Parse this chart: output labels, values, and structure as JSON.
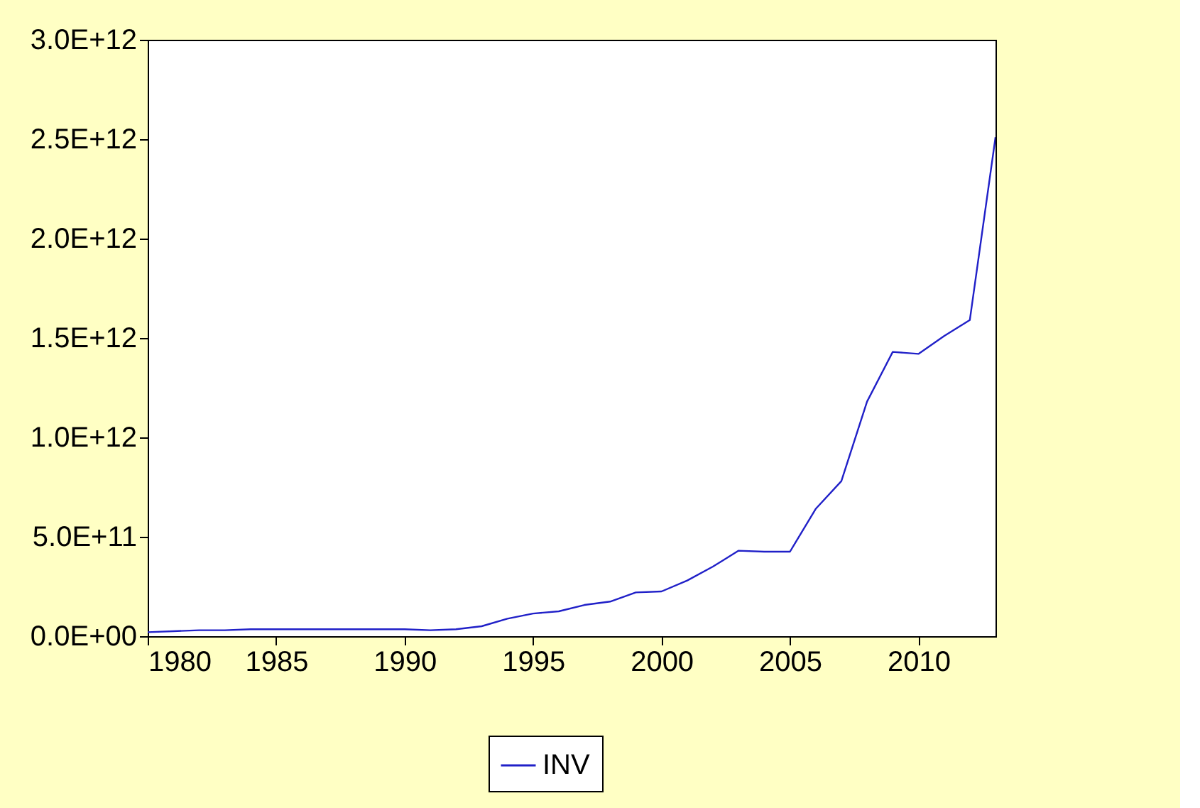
{
  "chart_data": {
    "type": "line",
    "x": [
      1980,
      1981,
      1982,
      1983,
      1984,
      1985,
      1986,
      1987,
      1988,
      1989,
      1990,
      1991,
      1992,
      1993,
      1994,
      1995,
      1996,
      1997,
      1998,
      1999,
      2000,
      2001,
      2002,
      2003,
      2004,
      2005,
      2006,
      2007,
      2008,
      2009,
      2010,
      2011,
      2012,
      2013
    ],
    "series": [
      {
        "name": "INV",
        "color": "#2020c8",
        "values": [
          20000000000,
          25000000000,
          30000000000,
          30000000000,
          35000000000,
          35000000000,
          35000000000,
          35000000000,
          35000000000,
          35000000000,
          35000000000,
          30000000000,
          35000000000,
          50000000000,
          88000000000,
          114000000000,
          125000000000,
          157000000000,
          174000000000,
          220000000000,
          225000000000,
          280000000000,
          350000000000,
          430000000000,
          425000000000,
          425000000000,
          640000000000,
          780000000000,
          1180000000000,
          1430000000000,
          1420000000000,
          1510000000000,
          1590000000000,
          2510000000000
        ]
      }
    ],
    "xlim": [
      1980,
      2013
    ],
    "xticks": [
      1980,
      1985,
      1990,
      1995,
      2000,
      2005,
      2010
    ],
    "ylim": [
      0,
      3000000000000
    ],
    "yticks": [
      {
        "value": 0,
        "label": "0.0E+00"
      },
      {
        "value": 500000000000,
        "label": "5.0E+11"
      },
      {
        "value": 1000000000000,
        "label": "1.0E+12"
      },
      {
        "value": 1500000000000,
        "label": "1.5E+12"
      },
      {
        "value": 2000000000000,
        "label": "2.0E+12"
      },
      {
        "value": 2500000000000,
        "label": "2.5E+12"
      },
      {
        "value": 3000000000000,
        "label": "3.0E+12"
      }
    ],
    "grid": false,
    "legend": "bottom",
    "line_style": "solid",
    "marker": "none"
  }
}
